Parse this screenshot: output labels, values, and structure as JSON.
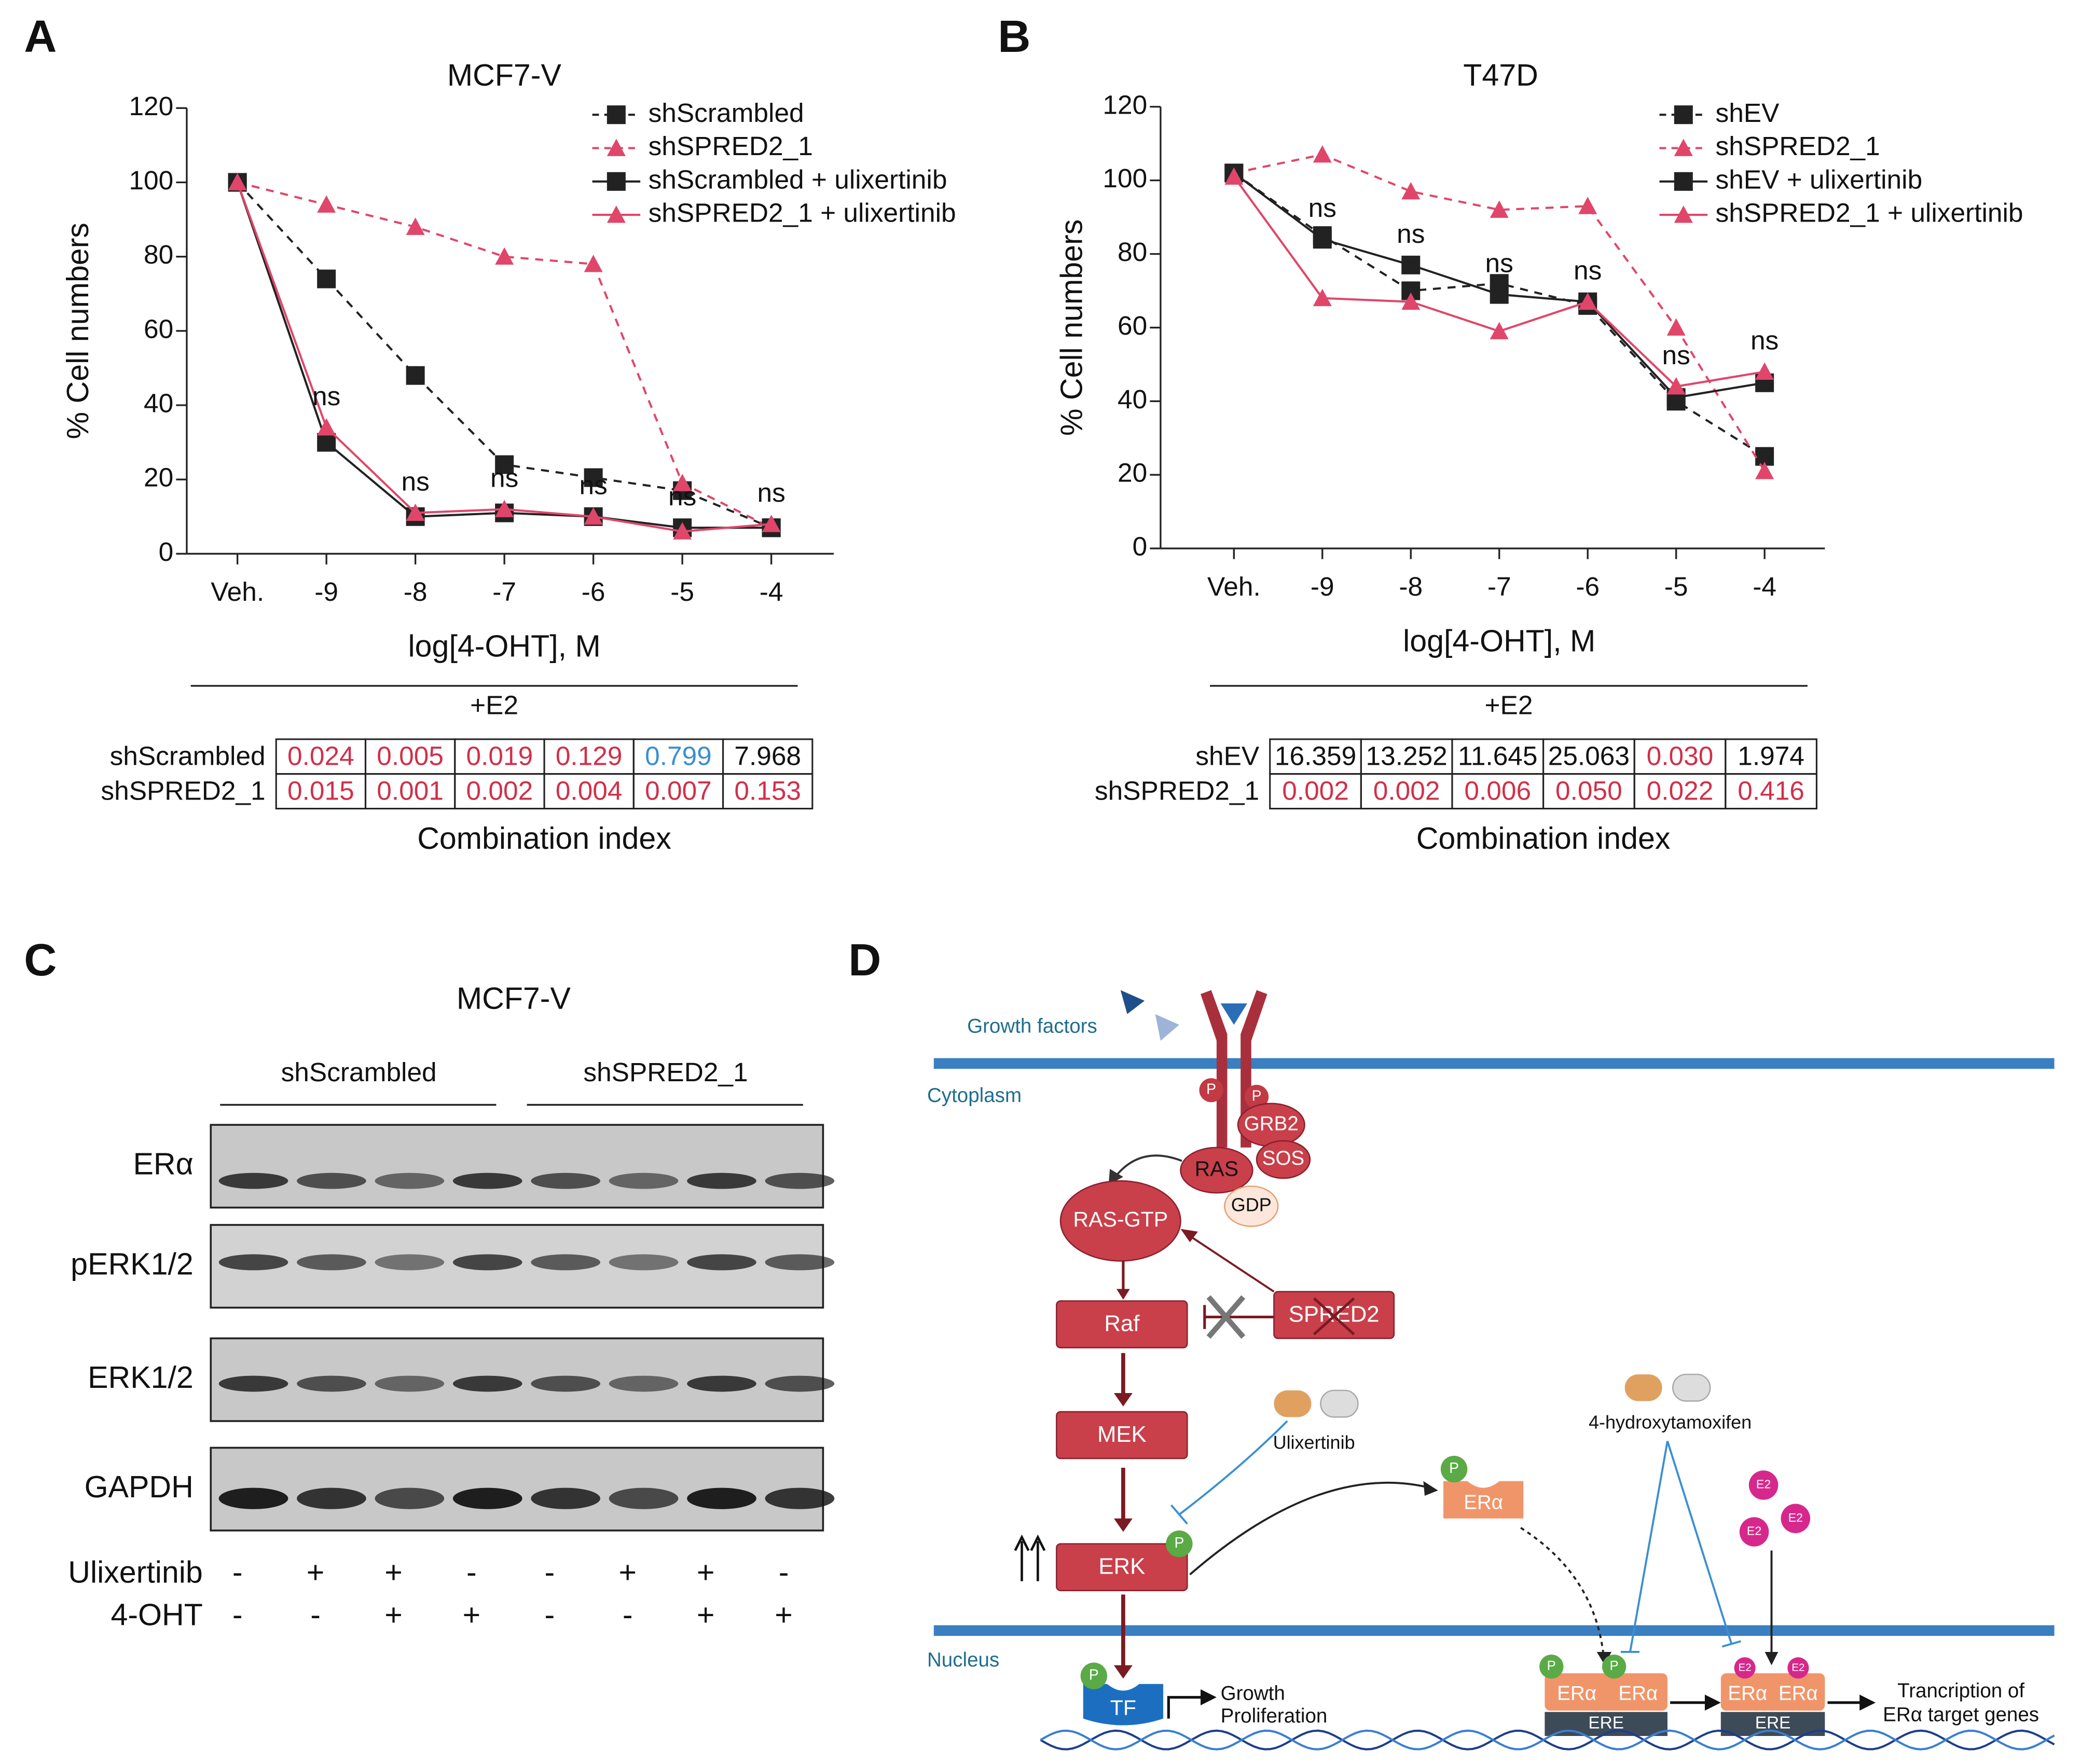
{
  "panels": [
    "A",
    "B",
    "C",
    "D"
  ],
  "chart_data": [
    {
      "type": "line",
      "title": "MCF7-V",
      "x_label": "log[4-OHT], M",
      "y_label": "% Cell numbers",
      "categories": [
        "Veh.",
        "-9",
        "-8",
        "-7",
        "-6",
        "-5",
        "-4"
      ],
      "ylim": [
        0,
        120
      ],
      "yticks": [
        0,
        20,
        40,
        60,
        80,
        100,
        120
      ],
      "legend": "upper right",
      "series": [
        {
          "name": "shScrambled",
          "color": "#222222",
          "dash": true,
          "marker": "square",
          "values": [
            100,
            74,
            48,
            24,
            20.5,
            17,
            7
          ]
        },
        {
          "name": "shSPRED2_1",
          "color": "#e0466a",
          "dash": true,
          "marker": "triangle",
          "values": [
            100,
            94,
            88,
            80,
            78,
            19,
            7
          ]
        },
        {
          "name": "shScrambled + ulixertinib",
          "color": "#222222",
          "dash": false,
          "marker": "square",
          "values": [
            100,
            30,
            10,
            11,
            10,
            7,
            7
          ]
        },
        {
          "name": "shSPRED2_1 + ulixertinib",
          "color": "#e0466a",
          "dash": false,
          "marker": "triangle",
          "values": [
            100,
            34,
            11,
            12,
            10,
            6,
            8
          ]
        }
      ],
      "annotations": [
        null,
        "ns",
        "ns",
        "ns",
        "ns",
        "ns",
        "ns"
      ],
      "condition": "+E2",
      "table": {
        "caption": "Combination index",
        "rows": [
          {
            "label": "shScrambled",
            "cells": [
              "0.024",
              "0.005",
              "0.019",
              "0.129",
              "0.799",
              "7.968"
            ],
            "colors": [
              "#d0304a",
              "#d0304a",
              "#d0304a",
              "#d0304a",
              "#3a8fd0",
              "#111111"
            ]
          },
          {
            "label": "shSPRED2_1",
            "cells": [
              "0.015",
              "0.001",
              "0.002",
              "0.004",
              "0.007",
              "0.153"
            ],
            "colors": [
              "#d0304a",
              "#d0304a",
              "#d0304a",
              "#d0304a",
              "#d0304a",
              "#d0304a"
            ]
          }
        ]
      }
    },
    {
      "type": "line",
      "title": "T47D",
      "x_label": "log[4-OHT], M",
      "y_label": "% Cell numbers",
      "categories": [
        "Veh.",
        "-9",
        "-8",
        "-7",
        "-6",
        "-5",
        "-4"
      ],
      "ylim": [
        0,
        120
      ],
      "yticks": [
        0,
        20,
        40,
        60,
        80,
        100,
        120
      ],
      "legend": "upper right",
      "series": [
        {
          "name": "shEV",
          "color": "#222222",
          "dash": true,
          "marker": "square",
          "values": [
            102,
            85,
            70,
            72,
            66,
            40,
            25
          ]
        },
        {
          "name": "shSPRED2_1",
          "color": "#e0466a",
          "dash": true,
          "marker": "triangle",
          "values": [
            102,
            107,
            97,
            92,
            93,
            60,
            21
          ]
        },
        {
          "name": "shEV + ulixertinib",
          "color": "#222222",
          "dash": false,
          "marker": "square",
          "values": [
            102,
            84,
            77,
            69,
            67,
            41,
            45
          ]
        },
        {
          "name": "shSPRED2_1 + ulixertinib",
          "color": "#e0466a",
          "dash": false,
          "marker": "triangle",
          "values": [
            101,
            68,
            67,
            59,
            67,
            44,
            48
          ]
        }
      ],
      "annotations": [
        null,
        "ns",
        "ns",
        "ns",
        "ns",
        "ns",
        "ns"
      ],
      "condition": "+E2",
      "table": {
        "caption": "Combination index",
        "rows": [
          {
            "label": "shEV",
            "cells": [
              "16.359",
              "13.252",
              "11.645",
              "25.063",
              "0.030",
              "1.974"
            ],
            "colors": [
              "#111111",
              "#111111",
              "#111111",
              "#111111",
              "#d0304a",
              "#111111"
            ]
          },
          {
            "label": "shSPRED2_1",
            "cells": [
              "0.002",
              "0.002",
              "0.006",
              "0.050",
              "0.022",
              "0.416"
            ],
            "colors": [
              "#d0304a",
              "#d0304a",
              "#d0304a",
              "#d0304a",
              "#d0304a",
              "#d0304a"
            ]
          }
        ]
      }
    }
  ],
  "blot": {
    "title": "MCF7-V",
    "groups": [
      "shScrambled",
      "shSPRED2_1"
    ],
    "proteins": [
      "ERα",
      "pERK1/2",
      "ERK1/2",
      "GAPDH"
    ],
    "treatments": [
      {
        "name": "Ulixertinib",
        "values": [
          "-",
          "+",
          "+",
          "-",
          "-",
          "+",
          "+",
          "-"
        ]
      },
      {
        "name": "4-OHT",
        "values": [
          "-",
          "-",
          "+",
          "+",
          "-",
          "-",
          "+",
          "+"
        ]
      }
    ]
  },
  "diagram": {
    "growth_factors": "Growth factors",
    "cytoplasm": "Cytoplasm",
    "nucleus": "Nucleus",
    "phospho": "P",
    "grb2": "GRB2",
    "sos": "SOS",
    "ras": "RAS",
    "gdp": "GDP",
    "ras_gtp": "RAS-GTP",
    "raf": "Raf",
    "spred2": "SPRED2",
    "mek": "MEK",
    "erk": "ERK",
    "ulixertinib": "Ulixertinib",
    "tamoxifen": "4-hydroxytamoxifen",
    "era": "ERα",
    "e2": "E2",
    "tf": "TF",
    "growth": "Growth",
    "proliferation": "Proliferation",
    "ere": "ERE",
    "transcription_1": "Trancription of",
    "transcription_2": "ERα target genes"
  }
}
